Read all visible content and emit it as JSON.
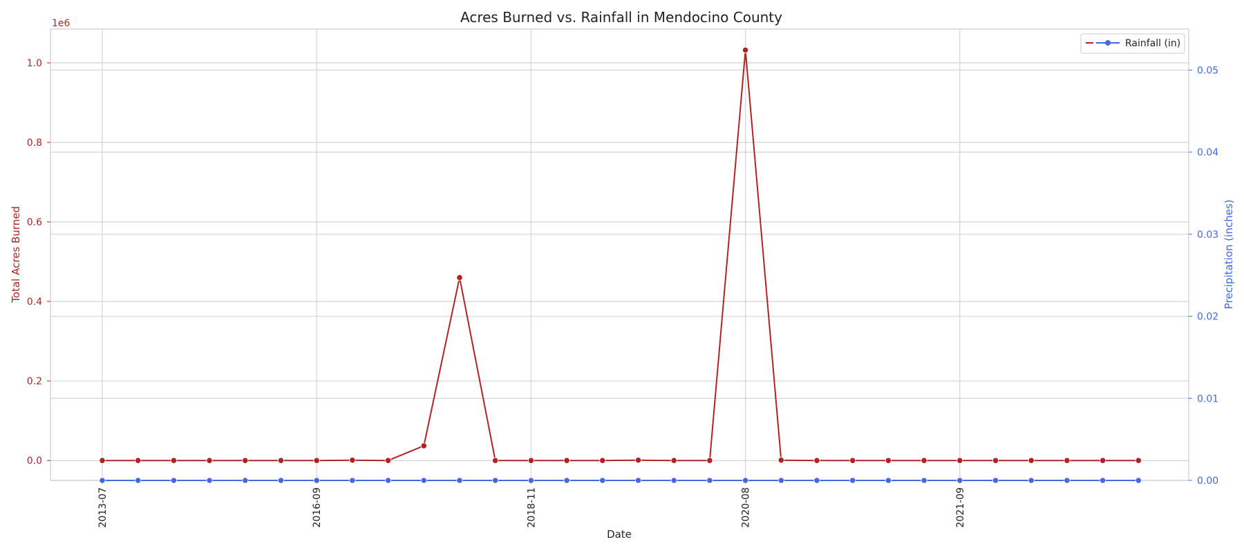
{
  "chart_data": {
    "type": "line",
    "title": "Acres Burned vs. Rainfall in Mendocino County",
    "xlabel": "Date",
    "ylabel_left": "Total Acres Burned",
    "ylabel_right": "Precipitation (inches)",
    "left_axis_offset_label": "1e6",
    "left_ylim": [
      -0.05,
      1.085
    ],
    "right_ylim": [
      0,
      0.055
    ],
    "left_ticks": [
      "0.0",
      "0.2",
      "0.4",
      "0.6",
      "0.8",
      "1.0"
    ],
    "right_ticks": [
      "0.00",
      "0.01",
      "0.02",
      "0.03",
      "0.04",
      "0.05"
    ],
    "x_tick_labels": [
      "2013-07",
      "2016-09",
      "2018-11",
      "2020-08",
      "2021-09"
    ],
    "grid": true,
    "legend_position": "top-right",
    "series": [
      {
        "name": "Acres Burned",
        "axis": "left",
        "color": "#b22222",
        "values": [
          0,
          0,
          0,
          0,
          0,
          0,
          0,
          0.001,
          0,
          0.037,
          0.46,
          0,
          0,
          0,
          0,
          0.001,
          0,
          0,
          1.032,
          0.001,
          0,
          0,
          0,
          0,
          0,
          0,
          0,
          0,
          0,
          0
        ]
      },
      {
        "name": "Rainfall (in)",
        "axis": "right",
        "color": "#4169e1",
        "values": [
          0,
          0,
          0,
          0,
          0,
          0,
          0,
          0,
          0,
          0,
          0,
          0,
          0,
          0,
          0,
          0,
          0,
          0,
          0,
          0,
          0,
          0,
          0,
          0,
          0,
          0,
          0,
          0,
          0,
          0
        ]
      }
    ]
  }
}
